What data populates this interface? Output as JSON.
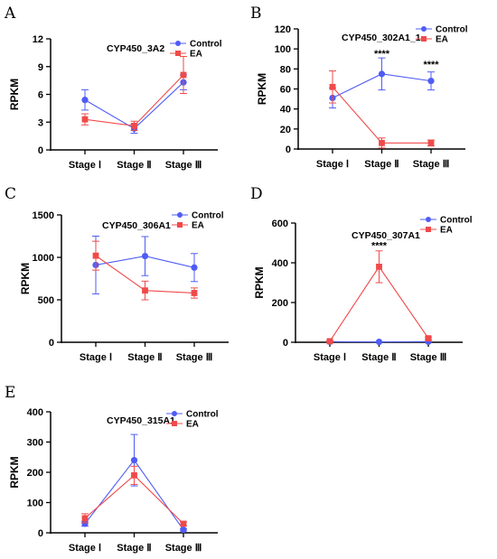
{
  "chart_data": [
    {
      "panel": "A",
      "type": "line",
      "title": "CYP450_3A2",
      "ylabel": "RPKM",
      "xlabel": "",
      "categories": [
        "Stage Ⅰ",
        "Stage Ⅱ",
        "Stage Ⅲ"
      ],
      "ylim": [
        0,
        12
      ],
      "yticks": [
        0,
        3,
        6,
        9,
        12
      ],
      "legend_position": "top-right",
      "grid": false,
      "series": [
        {
          "name": "Control",
          "color": "#4f5cf5",
          "marker": "circle",
          "values": [
            5.4,
            2.3,
            7.3
          ],
          "errors": [
            1.1,
            0.5,
            0.8
          ]
        },
        {
          "name": "EA",
          "color": "#f04a4a",
          "marker": "square",
          "values": [
            3.3,
            2.6,
            8.1
          ],
          "errors": [
            0.6,
            0.5,
            2.0
          ]
        }
      ],
      "annotations": []
    },
    {
      "panel": "B",
      "type": "line",
      "title": "CYP450_302A1_1",
      "ylabel": "RPKM",
      "xlabel": "",
      "categories": [
        "Stage Ⅰ",
        "Stage Ⅱ",
        "Stage Ⅲ"
      ],
      "ylim": [
        0,
        120
      ],
      "yticks": [
        0,
        20,
        40,
        60,
        80,
        100,
        120
      ],
      "legend_position": "top-right",
      "grid": false,
      "series": [
        {
          "name": "Control",
          "color": "#4f5cf5",
          "marker": "circle",
          "values": [
            51,
            75,
            68
          ],
          "errors": [
            10,
            16,
            9
          ]
        },
        {
          "name": "EA",
          "color": "#f04a4a",
          "marker": "square",
          "values": [
            62,
            6,
            6
          ],
          "errors": [
            16,
            5,
            3
          ]
        }
      ],
      "annotations": [
        {
          "category_index": 1,
          "y": 92,
          "text": "****"
        },
        {
          "category_index": 2,
          "y": 81,
          "text": "****"
        }
      ]
    },
    {
      "panel": "C",
      "type": "line",
      "title": "CYP450_306A1",
      "ylabel": "RPKM",
      "xlabel": "",
      "categories": [
        "Stage Ⅰ",
        "Stage Ⅱ",
        "Stage Ⅲ"
      ],
      "ylim": [
        0,
        1500
      ],
      "yticks": [
        0,
        500,
        1000,
        1500
      ],
      "legend_position": "top-right",
      "grid": false,
      "series": [
        {
          "name": "Control",
          "color": "#4f5cf5",
          "marker": "circle",
          "values": [
            910,
            1015,
            880
          ],
          "errors": [
            340,
            230,
            165
          ]
        },
        {
          "name": "EA",
          "color": "#f04a4a",
          "marker": "square",
          "values": [
            1020,
            610,
            580
          ],
          "errors": [
            170,
            110,
            60
          ]
        }
      ],
      "annotations": []
    },
    {
      "panel": "D",
      "type": "line",
      "title": "CYP450_307A1",
      "ylabel": "RPKM",
      "xlabel": "",
      "categories": [
        "Stage Ⅰ",
        "Stage Ⅱ",
        "Stage Ⅲ"
      ],
      "ylim": [
        0,
        600
      ],
      "yticks": [
        0,
        200,
        400,
        600
      ],
      "legend_position": "top-right",
      "grid": false,
      "series": [
        {
          "name": "Control",
          "color": "#4f5cf5",
          "marker": "circle",
          "values": [
            3,
            2,
            3
          ],
          "errors": [
            1,
            1,
            1
          ]
        },
        {
          "name": "EA",
          "color": "#f04a4a",
          "marker": "square",
          "values": [
            5,
            380,
            20
          ],
          "errors": [
            3,
            80,
            6
          ]
        }
      ],
      "annotations": [
        {
          "category_index": 1,
          "y": 470,
          "text": "****"
        }
      ]
    },
    {
      "panel": "E",
      "type": "line",
      "title": "CYP450_315A1",
      "ylabel": "RPKM",
      "xlabel": "",
      "categories": [
        "Stage Ⅰ",
        "Stage Ⅱ",
        "Stage Ⅲ"
      ],
      "ylim": [
        0,
        400
      ],
      "yticks": [
        0,
        100,
        200,
        300,
        400
      ],
      "legend_position": "top-right",
      "grid": false,
      "series": [
        {
          "name": "Control",
          "color": "#4f5cf5",
          "marker": "circle",
          "values": [
            30,
            240,
            10
          ],
          "errors": [
            8,
            85,
            4
          ]
        },
        {
          "name": "EA",
          "color": "#f04a4a",
          "marker": "square",
          "values": [
            48,
            190,
            30
          ],
          "errors": [
            15,
            30,
            6
          ]
        }
      ],
      "annotations": []
    }
  ]
}
